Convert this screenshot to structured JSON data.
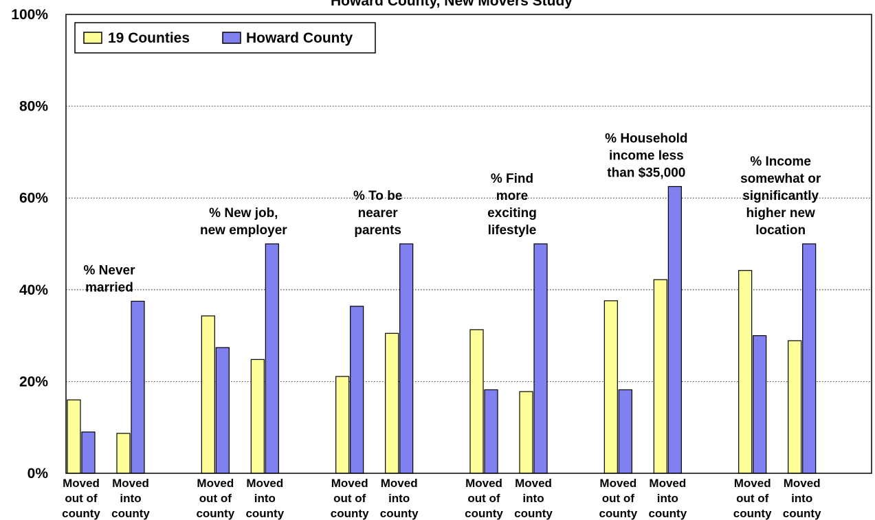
{
  "chart_data": {
    "type": "bar",
    "title": "Howard County, New Movers Study",
    "ylim": [
      0,
      100
    ],
    "yticks": [
      "0%",
      "20%",
      "40%",
      "60%",
      "80%",
      "100%"
    ],
    "grid": true,
    "legend_position": "top-left",
    "series_names": [
      "19 Counties",
      "Howard County"
    ],
    "colors": {
      "19 Counties": "#ffff99",
      "Howard County": "#8080f0"
    },
    "groups": [
      {
        "annotation": [
          "% Never",
          "married"
        ],
        "subgroups": [
          {
            "label": [
              "Moved",
              "out of",
              "county"
            ],
            "values": {
              "19 Counties": 16,
              "Howard County": 9
            }
          },
          {
            "label": [
              "Moved",
              "into",
              "county"
            ],
            "values": {
              "19 Counties": 8.7,
              "Howard County": 37.5
            }
          }
        ]
      },
      {
        "annotation": [
          "% New job,",
          "new employer"
        ],
        "subgroups": [
          {
            "label": [
              "Moved",
              "out of",
              "county"
            ],
            "values": {
              "19 Counties": 34.3,
              "Howard County": 27.4
            }
          },
          {
            "label": [
              "Moved",
              "into",
              "county"
            ],
            "values": {
              "19 Counties": 24.8,
              "Howard County": 50
            }
          }
        ]
      },
      {
        "annotation": [
          "% To be",
          "nearer",
          "parents"
        ],
        "subgroups": [
          {
            "label": [
              "Moved",
              "out of",
              "county"
            ],
            "values": {
              "19 Counties": 21.1,
              "Howard County": 36.4
            }
          },
          {
            "label": [
              "Moved",
              "into",
              "county"
            ],
            "values": {
              "19 Counties": 30.5,
              "Howard County": 50
            }
          }
        ]
      },
      {
        "annotation": [
          "% Find",
          "more",
          "exciting",
          "lifestyle"
        ],
        "subgroups": [
          {
            "label": [
              "Moved",
              "out of",
              "county"
            ],
            "values": {
              "19 Counties": 31.3,
              "Howard County": 18.2
            }
          },
          {
            "label": [
              "Moved",
              "into",
              "county"
            ],
            "values": {
              "19 Counties": 17.8,
              "Howard County": 50
            }
          }
        ]
      },
      {
        "annotation": [
          "% Household",
          "income less",
          "than $35,000"
        ],
        "subgroups": [
          {
            "label": [
              "Moved",
              "out of",
              "county"
            ],
            "values": {
              "19 Counties": 37.6,
              "Howard County": 18.2
            }
          },
          {
            "label": [
              "Moved",
              "into",
              "county"
            ],
            "values": {
              "19 Counties": 42.2,
              "Howard County": 62.5
            }
          }
        ]
      },
      {
        "annotation": [
          "% Income",
          "somewhat or",
          "significantly",
          "higher new",
          "location"
        ],
        "subgroups": [
          {
            "label": [
              "Moved",
              "out of",
              "county"
            ],
            "values": {
              "19 Counties": 44.2,
              "Howard County": 30
            }
          },
          {
            "label": [
              "Moved",
              "into",
              "county"
            ],
            "values": {
              "19 Counties": 28.9,
              "Howard County": 50
            }
          }
        ]
      }
    ]
  }
}
